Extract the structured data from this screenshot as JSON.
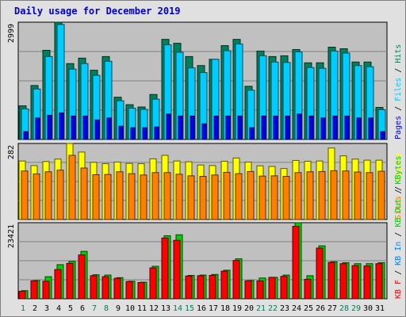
{
  "title": "Daily usage for December 2019",
  "colors": {
    "hits": "#00805c",
    "files": "#00ccff",
    "pages": "#0000ff",
    "visits": "#ffff00",
    "sites": "#ff8000",
    "kbytes": "#00cc00",
    "kb_in": "#ff0000",
    "kb_out": "#0080ff",
    "panel_bg": "#c0c0c0",
    "grid": "#808080",
    "axis_label_dark": "#000000",
    "weekend_label": "#00805c"
  },
  "chart_data": [
    {
      "type": "bar",
      "panel": "hits-files-pages",
      "x": [
        1,
        2,
        3,
        4,
        5,
        6,
        7,
        8,
        9,
        10,
        11,
        12,
        13,
        14,
        15,
        16,
        17,
        18,
        19,
        20,
        21,
        22,
        23,
        24,
        25,
        26,
        27,
        28,
        29,
        30,
        31
      ],
      "max_label": "2999",
      "ylim": [
        0,
        2999
      ],
      "grid_values": [
        750,
        1500,
        2250
      ],
      "series": [
        {
          "name": "Hits",
          "values": [
            860,
            1380,
            2280,
            2999,
            1940,
            2080,
            1770,
            2120,
            1080,
            890,
            830,
            1150,
            2560,
            2460,
            2120,
            1890,
            2050,
            2400,
            2560,
            1360,
            2260,
            2120,
            2140,
            2300,
            1960,
            1960,
            2360,
            2320,
            1980,
            1980,
            820
          ]
        },
        {
          "name": "Files",
          "values": [
            780,
            1290,
            2120,
            2940,
            1800,
            1940,
            1640,
            2000,
            990,
            800,
            770,
            1030,
            2420,
            2230,
            1830,
            1710,
            2050,
            2270,
            2440,
            1260,
            2140,
            1980,
            1970,
            2240,
            1840,
            1820,
            2260,
            2210,
            1890,
            1860,
            760
          ]
        },
        {
          "name": "Pages",
          "values": [
            200,
            550,
            620,
            680,
            600,
            600,
            500,
            550,
            340,
            300,
            300,
            320,
            650,
            600,
            600,
            400,
            600,
            600,
            600,
            300,
            600,
            600,
            600,
            650,
            600,
            550,
            600,
            600,
            550,
            550,
            200
          ]
        }
      ],
      "legend_right": [
        "Pages",
        "Files",
        "Hits"
      ]
    },
    {
      "type": "bar",
      "panel": "visits-sites",
      "x": [
        1,
        2,
        3,
        4,
        5,
        6,
        7,
        8,
        9,
        10,
        11,
        12,
        13,
        14,
        15,
        16,
        17,
        18,
        19,
        20,
        21,
        22,
        23,
        24,
        25,
        26,
        27,
        28,
        29,
        30,
        31
      ],
      "max_label": "282",
      "ylim": [
        0,
        282
      ],
      "grid_values": [
        71,
        141,
        212
      ],
      "series": [
        {
          "name": "Visits",
          "values": [
            217,
            200,
            215,
            224,
            282,
            250,
            212,
            207,
            213,
            208,
            207,
            225,
            238,
            217,
            214,
            202,
            200,
            216,
            228,
            213,
            199,
            197,
            189,
            219,
            216,
            217,
            265,
            236,
            224,
            220,
            220
          ]
        },
        {
          "name": "Sites",
          "values": [
            180,
            169,
            177,
            183,
            238,
            191,
            166,
            167,
            177,
            170,
            165,
            174,
            174,
            168,
            162,
            160,
            165,
            175,
            170,
            178,
            161,
            162,
            160,
            174,
            177,
            178,
            181,
            180,
            176,
            174,
            179
          ]
        }
      ],
      "legend_right": [
        "Sites",
        "Visits"
      ]
    },
    {
      "type": "bar",
      "panel": "kbytes-in-out",
      "x": [
        1,
        2,
        3,
        4,
        5,
        6,
        7,
        8,
        9,
        10,
        11,
        12,
        13,
        14,
        15,
        16,
        17,
        18,
        19,
        20,
        21,
        22,
        23,
        24,
        25,
        26,
        27,
        28,
        29,
        30,
        31
      ],
      "max_label": "23421",
      "ylim": [
        0,
        23421
      ],
      "grid_values": [
        5855,
        11711,
        17566
      ],
      "series": [
        {
          "name": "KBytes",
          "values": [
            2500,
            5600,
            6800,
            10500,
            11500,
            14600,
            7400,
            7300,
            6500,
            5400,
            5100,
            10000,
            19400,
            19700,
            7200,
            7300,
            7500,
            8800,
            12300,
            5600,
            6400,
            6600,
            7300,
            23421,
            7100,
            16300,
            11400,
            11100,
            10800,
            10800,
            11100
          ]
        },
        {
          "name": "KB In",
          "values": [
            2300,
            5500,
            5400,
            9000,
            10900,
            13500,
            7100,
            6800,
            6300,
            5300,
            5000,
            9500,
            18700,
            18000,
            7000,
            7100,
            7200,
            8500,
            11800,
            5500,
            5500,
            6600,
            6900,
            22300,
            6000,
            15600,
            11200,
            10800,
            10200,
            10100,
            10800
          ]
        },
        {
          "name": "KB Out",
          "values": [
            0,
            0,
            0,
            0,
            0,
            0,
            0,
            0,
            0,
            0,
            0,
            0,
            0,
            0,
            0,
            0,
            0,
            0,
            0,
            0,
            0,
            0,
            0,
            0,
            0,
            0,
            0,
            0,
            0,
            0,
            0
          ]
        }
      ],
      "legend_right": [
        "KB F",
        "KB In",
        "KB Out",
        "KBytes"
      ]
    }
  ],
  "x_labels": [
    "1",
    "2",
    "3",
    "4",
    "5",
    "6",
    "7",
    "8",
    "9",
    "10",
    "11",
    "12",
    "13",
    "14",
    "15",
    "16",
    "17",
    "18",
    "19",
    "20",
    "21",
    "22",
    "23",
    "24",
    "25",
    "26",
    "27",
    "28",
    "29",
    "30",
    "31"
  ],
  "weekend_days": [
    1,
    7,
    8,
    14,
    15,
    21,
    22,
    28,
    29
  ]
}
